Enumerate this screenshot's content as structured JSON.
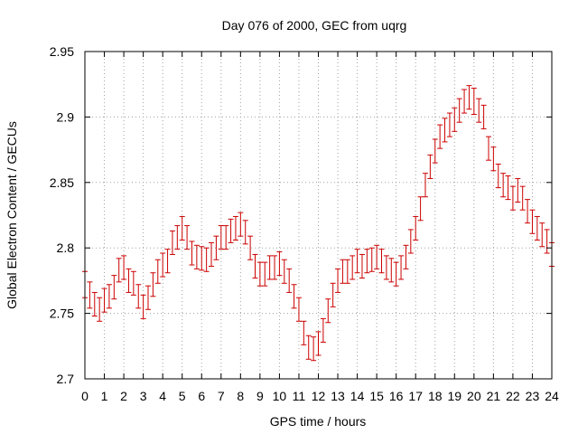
{
  "chart_data": {
    "type": "scatter",
    "title": "Day 076 of 2000, GEC from uqrg",
    "xlabel": "GPS time / hours",
    "ylabel": "Global Electron Content / GECUs",
    "xlim": [
      0,
      24
    ],
    "ylim": [
      2.7,
      2.95
    ],
    "grid": true,
    "xticks": [
      0,
      1,
      2,
      3,
      4,
      5,
      6,
      7,
      8,
      9,
      10,
      11,
      12,
      13,
      14,
      15,
      16,
      17,
      18,
      19,
      20,
      21,
      22,
      23,
      24
    ],
    "xtick_labels": [
      "0",
      "1",
      "2",
      "3",
      "4",
      "5",
      "6",
      "7",
      "8",
      "9",
      "10",
      "11",
      "12",
      "13",
      "14",
      "15",
      "16",
      "17",
      "18",
      "19",
      "20",
      "21",
      "22",
      "23",
      "24"
    ],
    "yticks": [
      2.7,
      2.75,
      2.8,
      2.85,
      2.9,
      2.95
    ],
    "ytick_labels": [
      "2.7",
      "2.75",
      "2.8",
      "2.85",
      "2.9",
      "2.95"
    ],
    "error_color": "#cc0000",
    "series": [
      {
        "name": "GEC",
        "x": [
          0,
          0.25,
          0.5,
          0.75,
          1,
          1.25,
          1.5,
          1.75,
          2,
          2.25,
          2.5,
          2.75,
          3,
          3.25,
          3.5,
          3.75,
          4,
          4.25,
          4.5,
          4.75,
          5,
          5.25,
          5.5,
          5.75,
          6,
          6.25,
          6.5,
          6.75,
          7,
          7.25,
          7.5,
          7.75,
          8,
          8.25,
          8.5,
          8.75,
          9,
          9.25,
          9.5,
          9.75,
          10,
          10.25,
          10.5,
          10.75,
          11,
          11.25,
          11.5,
          11.75,
          12,
          12.25,
          12.5,
          12.75,
          13,
          13.25,
          13.5,
          13.75,
          14,
          14.25,
          14.5,
          14.75,
          15,
          15.25,
          15.5,
          15.75,
          16,
          16.25,
          16.5,
          16.75,
          17,
          17.25,
          17.5,
          17.75,
          18,
          18.25,
          18.5,
          18.75,
          19,
          19.25,
          19.5,
          19.75,
          20,
          20.25,
          20.5,
          20.75,
          21,
          21.25,
          21.5,
          21.75,
          22,
          22.25,
          22.5,
          22.75,
          23,
          23.25,
          23.5,
          23.75,
          24
        ],
        "values": [
          2.772,
          2.764,
          2.757,
          2.753,
          2.76,
          2.763,
          2.77,
          2.783,
          2.785,
          2.775,
          2.773,
          2.763,
          2.755,
          2.762,
          2.772,
          2.782,
          2.787,
          2.79,
          2.804,
          2.808,
          2.815,
          2.808,
          2.796,
          2.793,
          2.792,
          2.791,
          2.795,
          2.8,
          2.808,
          2.808,
          2.813,
          2.815,
          2.818,
          2.812,
          2.8,
          2.786,
          2.78,
          2.78,
          2.785,
          2.785,
          2.788,
          2.782,
          2.775,
          2.763,
          2.753,
          2.735,
          2.724,
          2.723,
          2.727,
          2.737,
          2.752,
          2.764,
          2.775,
          2.782,
          2.782,
          2.785,
          2.79,
          2.786,
          2.79,
          2.791,
          2.793,
          2.79,
          2.785,
          2.783,
          2.78,
          2.785,
          2.793,
          2.805,
          2.815,
          2.83,
          2.848,
          2.862,
          2.874,
          2.885,
          2.89,
          2.894,
          2.898,
          2.905,
          2.912,
          2.915,
          2.912,
          2.905,
          2.9,
          2.876,
          2.868,
          2.855,
          2.848,
          2.846,
          2.838,
          2.844,
          2.838,
          2.828,
          2.82,
          2.815,
          2.81,
          2.805,
          2.795
        ],
        "errors": [
          0.01,
          0.01,
          0.009,
          0.009,
          0.009,
          0.009,
          0.009,
          0.009,
          0.009,
          0.009,
          0.009,
          0.009,
          0.009,
          0.009,
          0.009,
          0.009,
          0.009,
          0.009,
          0.009,
          0.009,
          0.009,
          0.009,
          0.009,
          0.009,
          0.009,
          0.009,
          0.009,
          0.009,
          0.009,
          0.009,
          0.009,
          0.009,
          0.009,
          0.009,
          0.009,
          0.009,
          0.009,
          0.009,
          0.009,
          0.009,
          0.009,
          0.009,
          0.009,
          0.009,
          0.009,
          0.009,
          0.009,
          0.009,
          0.009,
          0.009,
          0.009,
          0.009,
          0.009,
          0.009,
          0.009,
          0.009,
          0.009,
          0.009,
          0.009,
          0.009,
          0.009,
          0.009,
          0.009,
          0.009,
          0.009,
          0.009,
          0.009,
          0.009,
          0.009,
          0.009,
          0.009,
          0.009,
          0.009,
          0.009,
          0.009,
          0.009,
          0.009,
          0.009,
          0.009,
          0.009,
          0.01,
          0.009,
          0.009,
          0.009,
          0.009,
          0.009,
          0.009,
          0.009,
          0.009,
          0.009,
          0.009,
          0.009,
          0.009,
          0.009,
          0.009,
          0.009,
          0.009
        ]
      }
    ]
  }
}
